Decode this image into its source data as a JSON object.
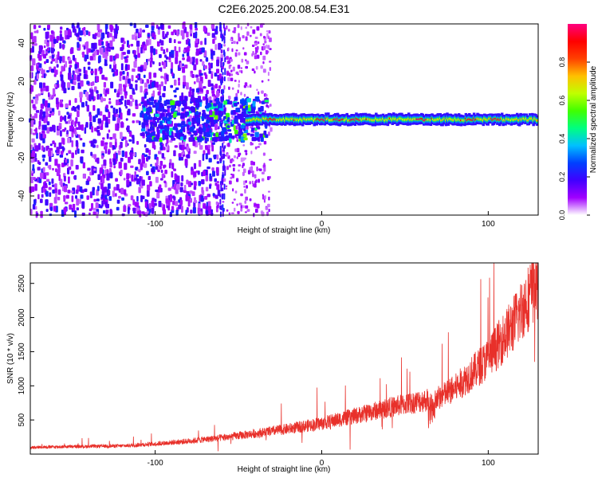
{
  "figure_title": "C2E6.2025.200.08.54.E31",
  "chart_data": [
    {
      "type": "heatmap",
      "xlabel": "Height of straight line (km)",
      "ylabel": "Frequency (Hz)",
      "xlim": [
        -175,
        130
      ],
      "ylim": [
        -50,
        50
      ],
      "x_ticks": [
        -100,
        0,
        100
      ],
      "x_tick_labels": [
        "-100",
        "0",
        "100"
      ],
      "y_ticks": [
        -40,
        -20,
        0,
        20,
        40
      ],
      "y_tick_labels": [
        "-40",
        "-20",
        "0",
        "20",
        "40"
      ],
      "colorbar": {
        "label": "Normalized spectral amplitude",
        "range": [
          0,
          1
        ],
        "ticks": [
          0.0,
          0.2,
          0.4,
          0.6,
          0.8
        ],
        "tick_labels": [
          "0.0",
          "0.2",
          "0.4",
          "0.6",
          "0.8"
        ],
        "colormap": [
          "#ffffff",
          "#a000ff",
          "#4000ff",
          "#0040ff",
          "#00c0ff",
          "#00ff80",
          "#40ff00",
          "#c0ff00",
          "#ffc000",
          "#ff4000",
          "#ff0000",
          "#ff0080"
        ]
      },
      "features": {
        "noise_region_x": [
          -175,
          -60
        ],
        "sparse_noise_region_x": [
          -60,
          -30
        ],
        "signal_ridge_freq": 0,
        "signal_ridge_x": [
          -105,
          130
        ],
        "signal_strength_peaks_x": [
          -30,
          0,
          10,
          20,
          60,
          90,
          105
        ]
      }
    },
    {
      "type": "line",
      "xlabel": "Height of straight line (km)",
      "ylabel": "SNR (10 * v/v)",
      "xlim": [
        -175,
        130
      ],
      "ylim": [
        0,
        2800
      ],
      "x_ticks": [
        -100,
        0,
        100
      ],
      "x_tick_labels": [
        "-100",
        "0",
        "100"
      ],
      "y_ticks": [
        500,
        1000,
        1500,
        2000,
        2500
      ],
      "y_tick_labels": [
        "500",
        "1000",
        "1500",
        "2000",
        "2500"
      ],
      "line_color": "#e8302a",
      "trend_points": {
        "x": [
          -175,
          -150,
          -120,
          -100,
          -80,
          -60,
          -40,
          -20,
          0,
          20,
          40,
          60,
          70,
          80,
          100,
          115,
          130
        ],
        "y": [
          100,
          110,
          120,
          150,
          190,
          240,
          300,
          370,
          450,
          560,
          680,
          780,
          820,
          960,
          1400,
          1900,
          2550
        ]
      },
      "noise_amplitude_fraction": 0.22
    }
  ]
}
